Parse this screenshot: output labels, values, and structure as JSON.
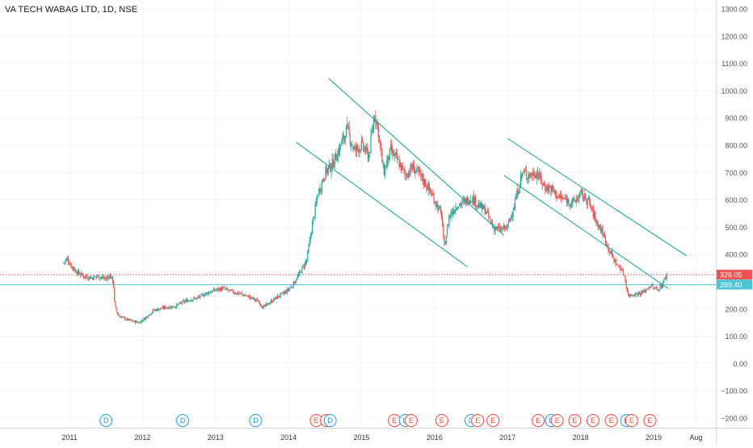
{
  "chart_title": "VA TECH WABAG LTD, 1D, NSE",
  "colors": {
    "up": "#26a69a",
    "down": "#ef5350",
    "channel": "#26a69a",
    "h_line": "#4dc4d6",
    "dotted_line": "#ef5350",
    "grid": "#f0f3fa",
    "axis_text": "#555555",
    "dividend": "#2196f3",
    "earnings": "#f44336",
    "last_price_bg": "#ef5350",
    "level_bg": "#4dc4d6"
  },
  "chart_data": {
    "type": "candlestick",
    "ylim": [
      -220,
      1320
    ],
    "xlim": [
      2010.8,
      2019.75
    ],
    "y_ticks": [
      -200,
      -100,
      0,
      100,
      200,
      300,
      400,
      500,
      600,
      700,
      800,
      900,
      1000,
      1100,
      1200,
      1300
    ],
    "y_tick_labels": [
      "−200.00",
      "−100.00",
      "0.00",
      "100.00",
      "200.00",
      "300.00",
      "400.00",
      "500.00",
      "600.00",
      "700.00",
      "800.00",
      "900.00",
      "1000.00",
      "1100.00",
      "1200.00",
      "1300.00"
    ],
    "x_ticks": [
      {
        "label": "2011",
        "x": 2011.0
      },
      {
        "label": "2012",
        "x": 2012.0
      },
      {
        "label": "2013",
        "x": 2013.0
      },
      {
        "label": "2014",
        "x": 2014.0
      },
      {
        "label": "2015",
        "x": 2015.0
      },
      {
        "label": "2016",
        "x": 2016.0
      },
      {
        "label": "2017",
        "x": 2017.0
      },
      {
        "label": "2018",
        "x": 2018.0
      },
      {
        "label": "2019",
        "x": 2019.0
      },
      {
        "label": "Aug",
        "x": 2019.58
      }
    ],
    "price_path": [
      [
        2010.92,
        370
      ],
      [
        2010.97,
        385
      ],
      [
        2011.02,
        360
      ],
      [
        2011.1,
        335
      ],
      [
        2011.2,
        320
      ],
      [
        2011.3,
        315
      ],
      [
        2011.4,
        320
      ],
      [
        2011.5,
        310
      ],
      [
        2011.55,
        325
      ],
      [
        2011.6,
        300
      ],
      [
        2011.62,
        210
      ],
      [
        2011.67,
        175
      ],
      [
        2011.8,
        160
      ],
      [
        2011.95,
        150
      ],
      [
        2012.05,
        170
      ],
      [
        2012.15,
        195
      ],
      [
        2012.3,
        205
      ],
      [
        2012.45,
        210
      ],
      [
        2012.55,
        225
      ],
      [
        2012.65,
        235
      ],
      [
        2012.75,
        240
      ],
      [
        2012.85,
        255
      ],
      [
        2013.0,
        270
      ],
      [
        2013.1,
        275
      ],
      [
        2013.2,
        265
      ],
      [
        2013.35,
        255
      ],
      [
        2013.5,
        240
      ],
      [
        2013.6,
        225
      ],
      [
        2013.65,
        205
      ],
      [
        2013.75,
        225
      ],
      [
        2013.85,
        245
      ],
      [
        2013.95,
        260
      ],
      [
        2014.05,
        285
      ],
      [
        2014.15,
        330
      ],
      [
        2014.25,
        380
      ],
      [
        2014.32,
        500
      ],
      [
        2014.4,
        620
      ],
      [
        2014.5,
        700
      ],
      [
        2014.6,
        730
      ],
      [
        2014.7,
        790
      ],
      [
        2014.8,
        860
      ],
      [
        2014.9,
        780
      ],
      [
        2015.0,
        800
      ],
      [
        2015.1,
        760
      ],
      [
        2015.18,
        920
      ],
      [
        2015.22,
        870
      ],
      [
        2015.3,
        700
      ],
      [
        2015.4,
        780
      ],
      [
        2015.5,
        740
      ],
      [
        2015.6,
        690
      ],
      [
        2015.7,
        720
      ],
      [
        2015.8,
        690
      ],
      [
        2015.9,
        650
      ],
      [
        2016.0,
        600
      ],
      [
        2016.1,
        540
      ],
      [
        2016.13,
        420
      ],
      [
        2016.2,
        540
      ],
      [
        2016.3,
        580
      ],
      [
        2016.4,
        590
      ],
      [
        2016.5,
        610
      ],
      [
        2016.6,
        580
      ],
      [
        2016.7,
        560
      ],
      [
        2016.8,
        500
      ],
      [
        2016.9,
        490
      ],
      [
        2017.0,
        500
      ],
      [
        2017.1,
        590
      ],
      [
        2017.2,
        700
      ],
      [
        2017.3,
        690
      ],
      [
        2017.4,
        700
      ],
      [
        2017.5,
        650
      ],
      [
        2017.6,
        640
      ],
      [
        2017.7,
        610
      ],
      [
        2017.8,
        600
      ],
      [
        2017.9,
        590
      ],
      [
        2018.0,
        620
      ],
      [
        2018.1,
        600
      ],
      [
        2018.2,
        530
      ],
      [
        2018.3,
        480
      ],
      [
        2018.4,
        410
      ],
      [
        2018.5,
        360
      ],
      [
        2018.55,
        350
      ],
      [
        2018.6,
        320
      ],
      [
        2018.65,
        250
      ],
      [
        2018.75,
        255
      ],
      [
        2018.85,
        260
      ],
      [
        2018.95,
        285
      ],
      [
        2019.05,
        270
      ],
      [
        2019.12,
        290
      ],
      [
        2019.18,
        326
      ]
    ],
    "channels": [
      {
        "from": [
          2014.1,
          812
        ],
        "to": [
          2016.45,
          355
        ]
      },
      {
        "from": [
          2014.55,
          1045
        ],
        "to": [
          2016.95,
          470
        ]
      },
      {
        "from": [
          2016.95,
          690
        ],
        "to": [
          2019.2,
          275
        ]
      },
      {
        "from": [
          2017.0,
          825
        ],
        "to": [
          2019.45,
          395
        ]
      }
    ],
    "levels": [
      {
        "value": 326.05,
        "label": "326.05",
        "style": "dotted"
      },
      {
        "value": 289.4,
        "label": "289.40",
        "style": "solid"
      }
    ],
    "events": [
      {
        "x": 2011.5,
        "label": "D",
        "kind": "dividend"
      },
      {
        "x": 2012.55,
        "label": "D",
        "kind": "dividend"
      },
      {
        "x": 2013.55,
        "label": "D",
        "kind": "dividend"
      },
      {
        "x": 2014.38,
        "label": "E",
        "kind": "earnings"
      },
      {
        "x": 2014.52,
        "label": "E",
        "kind": "earnings"
      },
      {
        "x": 2014.57,
        "label": "D",
        "kind": "dividend"
      },
      {
        "x": 2015.45,
        "label": "E",
        "kind": "earnings"
      },
      {
        "x": 2015.6,
        "label": "D",
        "kind": "dividend"
      },
      {
        "x": 2015.68,
        "label": "E",
        "kind": "earnings"
      },
      {
        "x": 2016.1,
        "label": "E",
        "kind": "earnings"
      },
      {
        "x": 2016.5,
        "label": "D",
        "kind": "dividend"
      },
      {
        "x": 2016.59,
        "label": "E",
        "kind": "earnings"
      },
      {
        "x": 2016.8,
        "label": "E",
        "kind": "earnings"
      },
      {
        "x": 2017.42,
        "label": "E",
        "kind": "earnings"
      },
      {
        "x": 2017.6,
        "label": "D",
        "kind": "dividend"
      },
      {
        "x": 2017.68,
        "label": "E",
        "kind": "earnings"
      },
      {
        "x": 2017.92,
        "label": "E",
        "kind": "earnings"
      },
      {
        "x": 2018.17,
        "label": "E",
        "kind": "earnings"
      },
      {
        "x": 2018.42,
        "label": "E",
        "kind": "earnings"
      },
      {
        "x": 2018.63,
        "label": "D",
        "kind": "dividend"
      },
      {
        "x": 2018.7,
        "label": "E",
        "kind": "earnings"
      },
      {
        "x": 2018.95,
        "label": "E",
        "kind": "earnings"
      }
    ]
  }
}
